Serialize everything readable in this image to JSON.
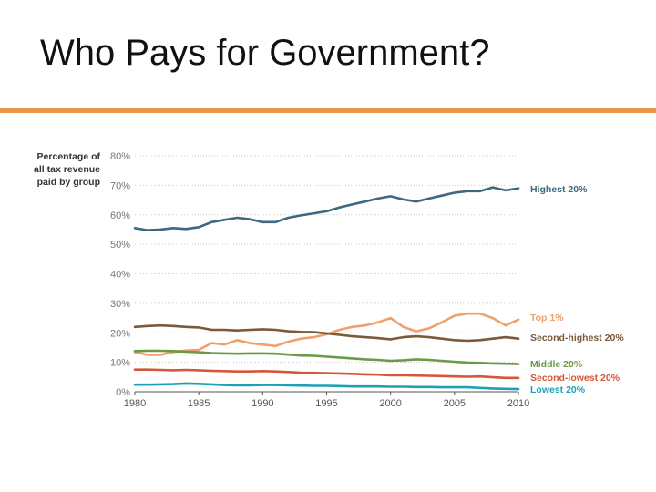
{
  "slide": {
    "title": "Who Pays for Government?",
    "accent_color": "#e8954a"
  },
  "chart_data": {
    "type": "line",
    "ylabel_lines": [
      "Percentage of",
      "all tax revenue",
      "paid by group"
    ],
    "xlabel": "",
    "x_ticks": [
      1980,
      1985,
      1990,
      1995,
      2000,
      2005,
      2010
    ],
    "y_ticks": [
      "0%",
      "10%",
      "20%",
      "30%",
      "40%",
      "50%",
      "60%",
      "70%",
      "80%"
    ],
    "xlim": [
      1980,
      2010
    ],
    "ylim": [
      0,
      80
    ],
    "grid": "horizontal-dotted",
    "legend": "direct-labels-right",
    "x": [
      1980,
      1981,
      1982,
      1983,
      1984,
      1985,
      1986,
      1987,
      1988,
      1989,
      1990,
      1991,
      1992,
      1993,
      1994,
      1995,
      1996,
      1997,
      1998,
      1999,
      2000,
      2001,
      2002,
      2003,
      2004,
      2005,
      2006,
      2007,
      2008,
      2009,
      2010
    ],
    "series": [
      {
        "name": "Highest 20%",
        "color": "#3d6880",
        "values": [
          55.5,
          54.8,
          55,
          55.5,
          55.2,
          55.8,
          57.5,
          58.3,
          59,
          58.5,
          57.5,
          57.5,
          59,
          59.8,
          60.5,
          61.2,
          62.5,
          63.5,
          64.5,
          65.5,
          66.3,
          65.2,
          64.5,
          65.5,
          66.5,
          67.5,
          68,
          68,
          69.3,
          68.3,
          69
        ]
      },
      {
        "name": "Top 1%",
        "color": "#f0a06a",
        "values": [
          13.5,
          12.5,
          12.5,
          13.5,
          14,
          14.2,
          16.5,
          16,
          17.5,
          16.5,
          16,
          15.5,
          17,
          18,
          18.5,
          19.5,
          21,
          22,
          22.5,
          23.5,
          25,
          22,
          20.5,
          21.5,
          23.5,
          25.8,
          26.5,
          26.5,
          25,
          22.5,
          24.5
        ]
      },
      {
        "name": "Second-highest 20%",
        "color": "#7a5a3a",
        "values": [
          22,
          22.3,
          22.5,
          22.3,
          22,
          21.8,
          21,
          21,
          20.8,
          21,
          21.2,
          21,
          20.5,
          20.3,
          20.2,
          19.8,
          19.3,
          18.8,
          18.5,
          18.2,
          17.8,
          18.5,
          18.8,
          18.5,
          18,
          17.5,
          17.3,
          17.5,
          18,
          18.5,
          18
        ]
      },
      {
        "name": "Middle 20%",
        "color": "#6a9a48",
        "values": [
          13.8,
          13.9,
          13.9,
          13.8,
          13.6,
          13.4,
          13.1,
          13,
          12.9,
          13,
          13,
          12.9,
          12.6,
          12.3,
          12.2,
          11.9,
          11.6,
          11.3,
          11,
          10.8,
          10.5,
          10.7,
          11,
          10.8,
          10.5,
          10.2,
          9.9,
          9.8,
          9.6,
          9.5,
          9.4
        ]
      },
      {
        "name": "Second-lowest 20%",
        "color": "#d4573a",
        "values": [
          7.5,
          7.5,
          7.4,
          7.3,
          7.4,
          7.3,
          7.1,
          7,
          6.9,
          6.9,
          7,
          6.9,
          6.7,
          6.5,
          6.4,
          6.3,
          6.2,
          6.1,
          5.9,
          5.8,
          5.6,
          5.6,
          5.5,
          5.4,
          5.3,
          5.2,
          5.1,
          5.2,
          4.9,
          4.7,
          4.7
        ]
      },
      {
        "name": "Lowest 20%",
        "color": "#1fa0b5",
        "values": [
          2.4,
          2.4,
          2.5,
          2.6,
          2.8,
          2.7,
          2.5,
          2.3,
          2.2,
          2.2,
          2.3,
          2.3,
          2.2,
          2.1,
          2,
          2,
          1.9,
          1.8,
          1.8,
          1.8,
          1.7,
          1.7,
          1.6,
          1.6,
          1.5,
          1.5,
          1.5,
          1.3,
          1.1,
          1,
          0.9
        ]
      }
    ]
  }
}
